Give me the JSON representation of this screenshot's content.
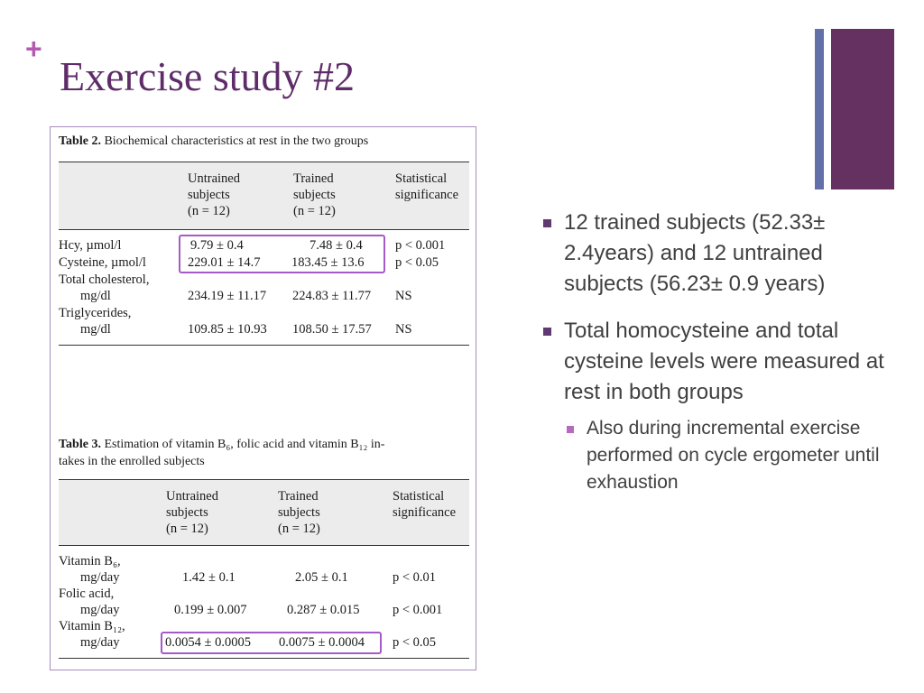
{
  "slide": {
    "plus": "+",
    "title": "Exercise study #2"
  },
  "table2": {
    "caption_label": "Table 2.",
    "caption_text": "Biochemical characteristics at rest in the two groups",
    "headers": {
      "untrained": [
        "Untrained",
        "subjects",
        "(n = 12)"
      ],
      "trained": [
        "Trained",
        "subjects",
        "(n = 12)"
      ],
      "significance": [
        "Statistical",
        "significance"
      ]
    },
    "rows": [
      {
        "label": "Hcy, µmol/l",
        "untrained": "9.79 ± 0.4",
        "trained": "7.48 ± 0.4",
        "significance": "p < 0.001"
      },
      {
        "label": "Cysteine, µmol/l",
        "untrained": "229.01 ± 14.7",
        "trained": "183.45 ± 13.6",
        "significance": "p < 0.05"
      },
      {
        "label": "Total cholesterol,",
        "label2": "mg/dl",
        "untrained": "234.19 ± 11.17",
        "trained": "224.83 ± 11.77",
        "significance": "NS"
      },
      {
        "label": "Triglycerides,",
        "label2": "mg/dl",
        "untrained": "109.85 ± 10.93",
        "trained": "108.50 ± 17.57",
        "significance": "NS"
      }
    ]
  },
  "table3": {
    "caption_label": "Table 3.",
    "caption_line1": "Estimation of vitamin B₆, folic acid and vitamin B₁₂ in-",
    "caption_line2": "takes in the enrolled subjects",
    "headers": {
      "untrained": [
        "Untrained",
        "subjects",
        "(n = 12)"
      ],
      "trained": [
        "Trained",
        "subjects",
        "(n = 12)"
      ],
      "significance": [
        "Statistical",
        "significance"
      ]
    },
    "rows": [
      {
        "label": "Vitamin B₆,",
        "label2": "mg/day",
        "untrained": "1.42 ± 0.1",
        "trained": "2.05 ± 0.1",
        "significance": "p < 0.01"
      },
      {
        "label": "Folic acid,",
        "label2": "mg/day",
        "untrained": "0.199 ± 0.007",
        "trained": "0.287 ± 0.015",
        "significance": "p < 0.001"
      },
      {
        "label": "Vitamin B₁₂,",
        "label2": "mg/day",
        "untrained": "0.0054 ± 0.0005",
        "trained": "0.0075 ± 0.0004",
        "significance": "p < 0.05"
      }
    ]
  },
  "bullets": [
    {
      "level": 1,
      "text": "12 trained subjects (52.33± 2.4years) and 12 untrained subjects (56.23± 0.9 years)"
    },
    {
      "level": 1,
      "text": "Total homocysteine and total cysteine levels were measured at rest in both groups"
    },
    {
      "level": 2,
      "text": "Also during incremental exercise performed on cycle ergometer until exhaustion"
    }
  ],
  "colors": {
    "title": "#5e2d69",
    "plus": "#b35bb0",
    "highlight": "#a55bc7",
    "deco_thin": "#636fa8",
    "deco_thick": "#643160"
  }
}
